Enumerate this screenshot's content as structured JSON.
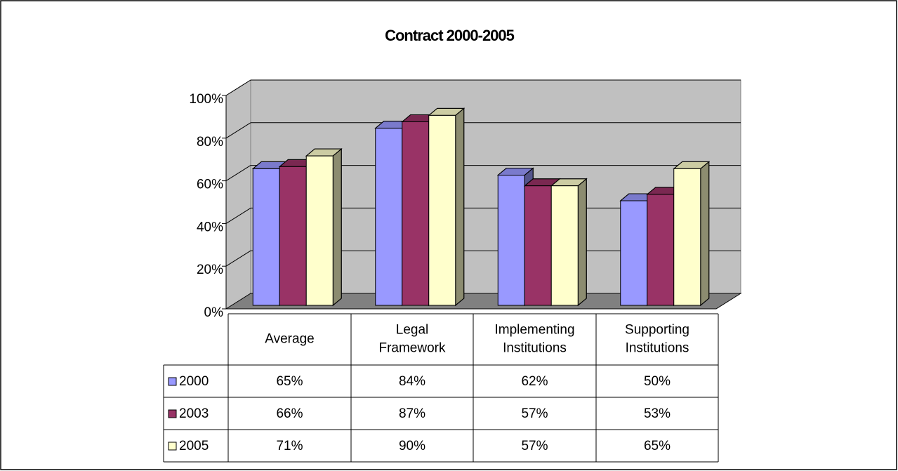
{
  "chart_data": {
    "type": "bar3d",
    "title": "Contract 2000-2005",
    "categories": [
      "Average",
      "Legal Framework",
      "Implementing Institutions",
      "Supporting Institutions"
    ],
    "series": [
      {
        "name": "2000",
        "color": "#9999ff",
        "values": [
          65,
          84,
          62,
          50
        ],
        "value_labels": [
          "65%",
          "84%",
          "62%",
          "50%"
        ]
      },
      {
        "name": "2003",
        "color": "#993366",
        "values": [
          66,
          87,
          57,
          53
        ],
        "value_labels": [
          "66%",
          "87%",
          "57%",
          "53%"
        ]
      },
      {
        "name": "2005",
        "color": "#ffffcc",
        "values": [
          71,
          90,
          57,
          65
        ],
        "value_labels": [
          "71%",
          "90%",
          "57%",
          "65%"
        ]
      }
    ],
    "ylim": [
      0,
      100
    ],
    "yticks": [
      {
        "value": 0,
        "label": "0%"
      },
      {
        "value": 20,
        "label": "20%"
      },
      {
        "value": 40,
        "label": "40%"
      },
      {
        "value": 60,
        "label": "60%"
      },
      {
        "value": 80,
        "label": "80%"
      },
      {
        "value": 100,
        "label": "100%"
      }
    ],
    "grid": true,
    "data_table": true
  }
}
